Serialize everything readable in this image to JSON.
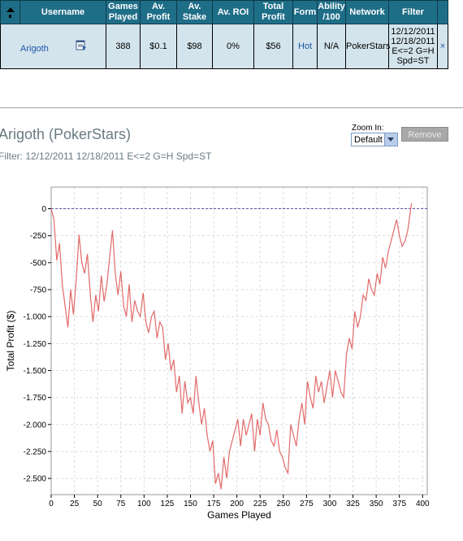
{
  "table": {
    "headers": [
      "",
      "Username",
      "Games Played",
      "Av. Profit",
      "Av. Stake",
      "Av. ROI",
      "Total Profit",
      "Form",
      "Ability /100",
      "Network",
      "Filter",
      ""
    ],
    "row": {
      "username": "Arigoth",
      "games_played": "388",
      "av_profit": "$0.1",
      "av_stake": "$98",
      "av_roi": "0%",
      "total_profit": "$56",
      "form": "Hot",
      "ability": "N/A",
      "network": "PokerStars",
      "filter_lines": [
        "12/12/2011",
        "12/18/2011",
        "E<=2 G=H",
        "Spd=ST"
      ],
      "remove": "×"
    },
    "header_color": "#1f6e88",
    "row_color": "#d4e4ec"
  },
  "graph": {
    "title": "Arigoth (PokerStars)",
    "filter": "Filter: 12/12/2011 12/18/2011 E<=2 G=H Spd=ST"
  },
  "zoom": {
    "label": "Zoom In:",
    "selected": "Default",
    "remove_label": "Remove"
  },
  "chart_data": {
    "type": "line",
    "xlabel": "Games Played",
    "ylabel": "Total Profit ($)",
    "xlim": [
      0,
      405
    ],
    "ylim": [
      -2650,
      200
    ],
    "x_ticks": [
      0,
      25,
      50,
      75,
      100,
      125,
      150,
      175,
      200,
      225,
      250,
      275,
      300,
      325,
      350,
      375,
      400
    ],
    "y_ticks": [
      0,
      -250,
      -500,
      -750,
      -1000,
      -1250,
      -1500,
      -1750,
      -2000,
      -2250,
      -2500
    ],
    "y_tick_labels": [
      "0",
      "-250",
      "-500",
      "-750",
      "-1.000",
      "-1.250",
      "-1.500",
      "-1.750",
      "-2.000",
      "-2.250",
      "-2.500"
    ],
    "line_color": "#e26a6a",
    "zero_line_color": "#5a5aa8",
    "grid": true,
    "series": [
      {
        "x": [
          0,
          3,
          6,
          9,
          12,
          15,
          18,
          21,
          24,
          27,
          30,
          33,
          36,
          39,
          42,
          45,
          48,
          51,
          54,
          57,
          60,
          63,
          66,
          69,
          72,
          75,
          78,
          81,
          84,
          87,
          90,
          93,
          96,
          99,
          102,
          105,
          108,
          111,
          114,
          117,
          120,
          123,
          126,
          129,
          132,
          135,
          138,
          141,
          144,
          147,
          150,
          153,
          156,
          159,
          162,
          165,
          168,
          171,
          174,
          177,
          180,
          183,
          186,
          189,
          192,
          195,
          198,
          201,
          204,
          207,
          210,
          213,
          216,
          219,
          222,
          225,
          228,
          231,
          234,
          237,
          240,
          243,
          246,
          249,
          252,
          255,
          258,
          261,
          264,
          267,
          270,
          273,
          276,
          279,
          282,
          285,
          288,
          291,
          294,
          297,
          300,
          303,
          306,
          309,
          312,
          315,
          318,
          321,
          324,
          327,
          330,
          333,
          336,
          339,
          342,
          345,
          348,
          351,
          354,
          357,
          360,
          363,
          366,
          369,
          372,
          375,
          378,
          381,
          384,
          388
        ],
        "y": [
          0,
          -100,
          -480,
          -320,
          -700,
          -900,
          -1100,
          -750,
          -980,
          -650,
          -240,
          -500,
          -600,
          -420,
          -780,
          -1050,
          -800,
          -950,
          -620,
          -860,
          -700,
          -450,
          -200,
          -600,
          -800,
          -580,
          -900,
          -1000,
          -700,
          -1050,
          -850,
          -950,
          -1000,
          -780,
          -1050,
          -1150,
          -1000,
          -950,
          -1200,
          -1050,
          -1100,
          -1400,
          -1250,
          -1500,
          -1400,
          -1700,
          -1550,
          -1900,
          -1600,
          -1800,
          -1750,
          -1900,
          -1550,
          -1800,
          -2000,
          -1850,
          -2100,
          -2250,
          -2150,
          -2550,
          -2450,
          -2600,
          -2300,
          -2500,
          -2250,
          -2150,
          -2050,
          -1950,
          -2200,
          -1950,
          -2100,
          -2000,
          -1900,
          -2250,
          -1950,
          -2100,
          -1800,
          -1950,
          -2000,
          -2150,
          -2200,
          -2050,
          -2250,
          -2300,
          -2400,
          -2450,
          -2000,
          -2100,
          -2200,
          -1950,
          -1800,
          -2000,
          -1600,
          -1750,
          -1850,
          -1550,
          -1700,
          -1600,
          -1800,
          -1650,
          -1500,
          -1750,
          -1500,
          -1600,
          -1700,
          -1750,
          -1350,
          -1200,
          -1300,
          -950,
          -1100,
          -1000,
          -800,
          -850,
          -650,
          -750,
          -800,
          -600,
          -700,
          -450,
          -550,
          -400,
          -300,
          -200,
          -100,
          -250,
          -350,
          -300,
          -200,
          50
        ]
      }
    ]
  }
}
